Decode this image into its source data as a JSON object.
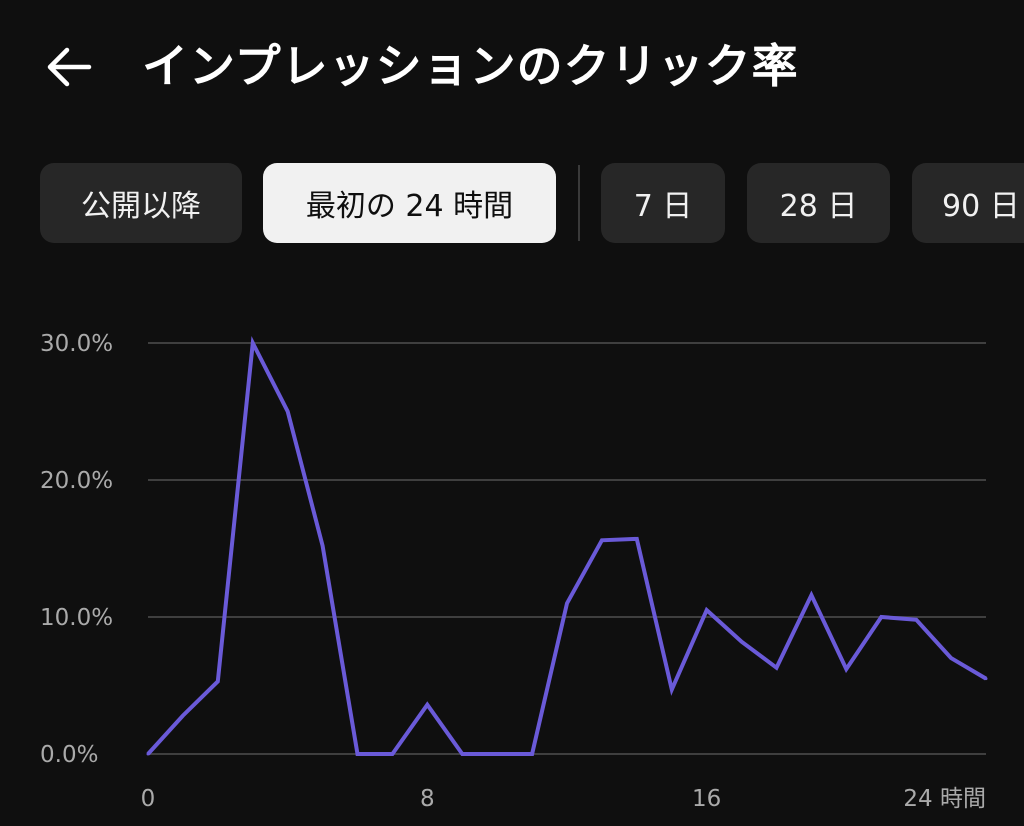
{
  "header": {
    "back_icon": "arrow-left-icon",
    "title": "インプレッションのクリック率"
  },
  "filters": {
    "chips": [
      {
        "label": "公開以降",
        "active": false
      },
      {
        "label": "最初の 24 時間",
        "active": true
      },
      {
        "label": "7 日",
        "active": false
      },
      {
        "label": "28 日",
        "active": false
      },
      {
        "label": "90 日",
        "active": false
      }
    ]
  },
  "colors": {
    "line": "#6a5ad8",
    "grid": "#3f3f3f",
    "background": "#0f0f0f"
  },
  "chart_data": {
    "type": "line",
    "title": "",
    "xlabel": "",
    "ylabel": "",
    "x_ticks": [
      "0",
      "8",
      "16",
      "24 時間"
    ],
    "x_tick_values": [
      0,
      8,
      16,
      24
    ],
    "y_ticks": [
      "0.0%",
      "10.0%",
      "20.0%",
      "30.0%"
    ],
    "y_tick_values": [
      0,
      10,
      20,
      30
    ],
    "xlim": [
      0,
      24
    ],
    "ylim": [
      0,
      30
    ],
    "grid": true,
    "series": [
      {
        "x": [
          0,
          1,
          2,
          3,
          4,
          5,
          6,
          7,
          8,
          9,
          10,
          11,
          12,
          13,
          14,
          15,
          16,
          17,
          18,
          19,
          20,
          21,
          22,
          23,
          24
        ],
        "values": [
          0,
          2.8,
          5.3,
          30.0,
          25.0,
          15.2,
          0,
          0,
          3.6,
          0,
          0,
          0,
          11.0,
          15.6,
          15.7,
          4.7,
          10.5,
          8.2,
          6.3,
          11.6,
          6.2,
          10.0,
          9.8,
          7.0,
          5.5
        ]
      }
    ]
  }
}
